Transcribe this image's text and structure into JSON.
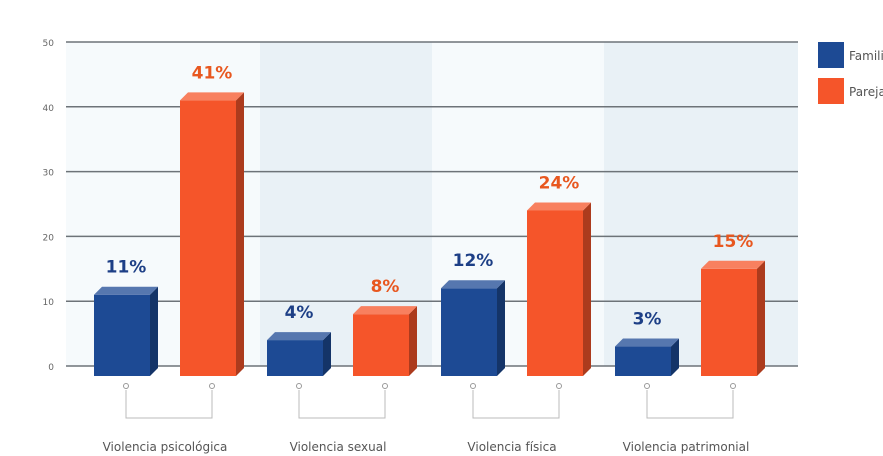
{
  "chart_data": {
    "type": "bar",
    "categories": [
      "Violencia psicológica",
      "Violencia sexual",
      "Violencia física",
      "Violencia patrimonial"
    ],
    "series": [
      {
        "name": "Famili",
        "color": "#1d4a94",
        "values": [
          11,
          4,
          12,
          3
        ],
        "labels": [
          "11%",
          "4%",
          "12%",
          "3%"
        ],
        "label_color": "#1d3f86"
      },
      {
        "name": "Pareja",
        "color": "#f5552a",
        "values": [
          41,
          8,
          24,
          15
        ],
        "labels": [
          "41%",
          "8%",
          "24%",
          "15%"
        ],
        "label_color": "#e8571f"
      }
    ],
    "y_ticks": [
      "0",
      "10",
      "20",
      "30",
      "40",
      "50"
    ],
    "ylim": [
      0,
      50
    ],
    "grid": true,
    "legend": "top-right",
    "xlabel": "",
    "ylabel": "",
    "title": ""
  }
}
